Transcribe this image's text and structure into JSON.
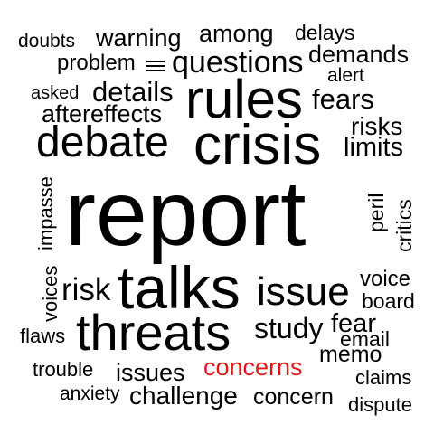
{
  "cloud": {
    "accent_color": "#e0191b",
    "text_color": "#000000",
    "background": "#ffffff",
    "words": {
      "doubts": "doubts",
      "warning": "warning",
      "among": "among",
      "delays": "delays",
      "problem": "problem",
      "questions": "questions",
      "demands": "demands",
      "alert": "alert",
      "asked": "asked",
      "details": "details",
      "rules": "rules",
      "fears": "fears",
      "aftereffects": "aftereffects",
      "risks": "risks",
      "debate": "debate",
      "crisis": "crisis",
      "limits": "limits",
      "report": "report",
      "impasse": "impasse",
      "peril": "peril",
      "critics": "critics",
      "voices": "voices",
      "voice": "voice",
      "risk": "risk",
      "talks": "talks",
      "issue": "issue",
      "board": "board",
      "threats": "threats",
      "study": "study",
      "fear": "fear",
      "flaws": "flaws",
      "email": "email",
      "memo": "memo",
      "trouble": "trouble",
      "issues": "issues",
      "concerns": "concerns",
      "claims": "claims",
      "anxiety": "anxiety",
      "challenge": "challenge",
      "concern": "concern",
      "dispute": "dispute"
    }
  }
}
